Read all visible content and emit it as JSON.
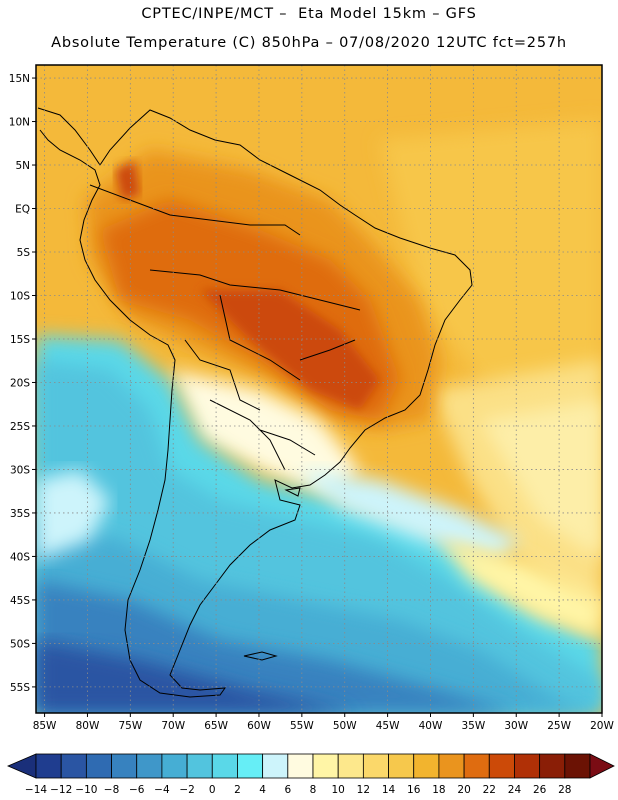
{
  "header": {
    "line1": "CPTEC/INPE/MCT –  Eta Model 15km – GFS",
    "line2": "Absolute Temperature (C) 850hPa – 07/08/2020 12UTC fct=257h"
  },
  "axes": {
    "lat_labels": [
      "15N",
      "10N",
      "5N",
      "EQ",
      "5S",
      "10S",
      "15S",
      "20S",
      "25S",
      "30S",
      "35S",
      "40S",
      "45S",
      "50S",
      "55S"
    ],
    "lat_values": [
      15,
      10,
      5,
      0,
      -5,
      -10,
      -15,
      -20,
      -25,
      -30,
      -35,
      -40,
      -45,
      -50,
      -55
    ],
    "lon_labels": [
      "85W",
      "80W",
      "75W",
      "70W",
      "65W",
      "60W",
      "55W",
      "50W",
      "45W",
      "40W",
      "35W",
      "30W",
      "25W",
      "20W"
    ],
    "lon_values": [
      -85,
      -80,
      -75,
      -70,
      -65,
      -60,
      -55,
      -50,
      -45,
      -40,
      -35,
      -30,
      -25,
      -20
    ],
    "lat_range": [
      -58,
      16.5
    ],
    "lon_range": [
      -86,
      -20
    ]
  },
  "colorbar": {
    "labels": [
      "-14",
      "-12",
      "-10",
      "-8",
      "-6",
      "-4",
      "-2",
      "0",
      "2",
      "4",
      "6",
      "8",
      "10",
      "12",
      "14",
      "16",
      "18",
      "20",
      "22",
      "24",
      "26",
      "28"
    ],
    "colors": [
      "#1f3d8f",
      "#2a55a3",
      "#2f6bb2",
      "#3782bf",
      "#3f97c9",
      "#46aed4",
      "#52c4de",
      "#5ad8e8",
      "#66eef6",
      "#cdf4fb",
      "#fffbe0",
      "#fff5a6",
      "#fde88c",
      "#fbd86a",
      "#f6c84c",
      "#f2b42e",
      "#ea941e",
      "#df6c10",
      "#cc4a08",
      "#b03006",
      "#8a1e06",
      "#6b1204"
    ],
    "left_arrow_color": "#1a2f7a",
    "right_arrow_color": "#7a0c14"
  },
  "map": {
    "ocean_north_color": "#f6c24a",
    "frame_color": "#000000",
    "grid_style": "dotted"
  }
}
